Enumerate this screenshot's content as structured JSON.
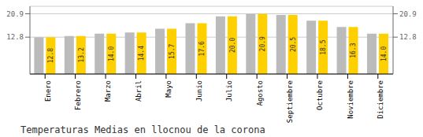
{
  "chart_data": {
    "type": "bar",
    "title": "Temperaturas Medias en llocnou de la corona",
    "categories": [
      "Enero",
      "Febrero",
      "Marzo",
      "Abril",
      "Mayo",
      "Junio",
      "Julio",
      "Agosto",
      "Septiembre",
      "Octubre",
      "Noviembre",
      "Diciembre"
    ],
    "series": [
      {
        "color": "#BBBBBB",
        "values": [
          12.8,
          13.2,
          14.0,
          14.4,
          15.7,
          17.6,
          20.0,
          20.9,
          20.5,
          18.5,
          16.3,
          14.0
        ]
      },
      {
        "color": "#FFD000",
        "values": [
          12.8,
          13.2,
          14.0,
          14.4,
          15.7,
          17.6,
          20.0,
          20.9,
          20.5,
          18.5,
          16.3,
          14.0
        ],
        "data_labels": true,
        "value_labels": [
          "12.8",
          "13.2",
          "14.0",
          "14.4",
          "15.7",
          "17.6",
          "20.0",
          "20.9",
          "20.5",
          "18.5",
          "16.3",
          "14.0"
        ]
      }
    ],
    "ylim": [
      0,
      23.5
    ],
    "yticks": [
      12.8,
      20.9
    ],
    "y2lim": [
      0,
      23.5
    ],
    "y2ticks": [
      12.8,
      20.9
    ],
    "grid": true
  }
}
